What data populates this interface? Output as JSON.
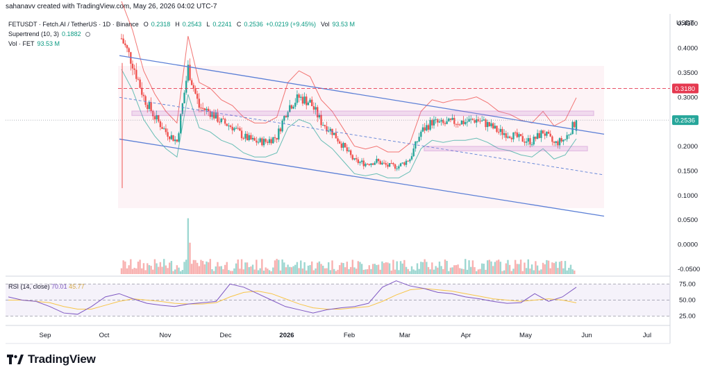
{
  "header": {
    "credit": "sahanavv created with TradingView.com, May 26, 2026 04:02 UTC-7"
  },
  "legend": {
    "symbol": "FETUSDT · Fetch.AI / TetherUS · 1D · Binance",
    "o_label": "O",
    "o_value": "0.2318",
    "h_label": "H",
    "h_value": "0.2543",
    "l_label": "L",
    "l_value": "0.2241",
    "c_label": "C",
    "c_value": "0.2536",
    "change": "+0.0219 (+9.45%)",
    "vol_label": "Vol",
    "vol_value": "93.53 M",
    "supertrend_label": "Supertrend (10, 3)",
    "supertrend_value": "0.1882",
    "vol_fet_label": "Vol · FET",
    "vol_fet_value": "93.53 M"
  },
  "rsi_legend": {
    "label": "RSI (14, close)",
    "rsi_value": "70.01",
    "ma_value": "45.77"
  },
  "brand": {
    "text": "TradingView"
  },
  "colors": {
    "up": "#26a69a",
    "down": "#ef5350",
    "channel": "#5b7fd6",
    "zone": "#9c27b0",
    "resistance": "#e53950",
    "price_tag": "#26a69a",
    "rsi_line": "#7e57c2",
    "rsi_ma": "#f7c548"
  },
  "chart_data": {
    "type": "line",
    "title": "FETUSDT · Fetch.AI / TetherUS · 1D · Binance",
    "currency": "USDT",
    "y_ticks": [
      "0.4500",
      "0.4000",
      "0.3500",
      "0.3000",
      "0.2500",
      "0.2000",
      "0.1500",
      "0.1000",
      "0.0500",
      "0.0000",
      "-0.0500"
    ],
    "ylim": [
      -0.06,
      0.47
    ],
    "x_ticks": [
      "Sep",
      "Oct",
      "Nov",
      "Dec",
      "2026",
      "Feb",
      "Mar",
      "Apr",
      "May",
      "Jun",
      "Jul"
    ],
    "last_price": "0.2536",
    "resistance_level": "0.3180",
    "price_series": {
      "name": "FETUSDT",
      "x": [
        "Oct 10",
        "Oct 12",
        "Oct 16",
        "Oct 22",
        "Oct 28",
        "Nov 3",
        "Nov 5",
        "Nov 10",
        "Nov 16",
        "Nov 22",
        "Nov 28",
        "Dec 4",
        "Dec 10",
        "Dec 16",
        "Dec 22",
        "Dec 28",
        "Jan 2",
        "Jan 8",
        "Jan 14",
        "Jan 20",
        "Jan 26",
        "Feb 1",
        "Feb 7",
        "Feb 13",
        "Feb 19",
        "Feb 25",
        "Mar 3",
        "Mar 9",
        "Mar 13",
        "Mar 18",
        "Mar 24",
        "Mar 30",
        "Apr 5",
        "Apr 11",
        "Apr 17",
        "Apr 23",
        "Apr 29",
        "May 5",
        "May 11",
        "May 17",
        "May 23",
        "May 26"
      ],
      "values": [
        0.42,
        0.37,
        0.3,
        0.26,
        0.23,
        0.21,
        0.36,
        0.28,
        0.27,
        0.25,
        0.24,
        0.22,
        0.21,
        0.21,
        0.22,
        0.28,
        0.3,
        0.29,
        0.25,
        0.23,
        0.2,
        0.17,
        0.165,
        0.17,
        0.16,
        0.16,
        0.175,
        0.23,
        0.25,
        0.245,
        0.25,
        0.25,
        0.255,
        0.245,
        0.23,
        0.225,
        0.215,
        0.21,
        0.23,
        0.205,
        0.215,
        0.2536
      ]
    },
    "rsi": {
      "name": "RSI (14, close)",
      "levels": [
        "75.00",
        "50.00",
        "25.00"
      ],
      "ylim": [
        15,
        85
      ],
      "values": [
        55,
        50,
        48,
        40,
        30,
        28,
        40,
        55,
        60,
        52,
        45,
        42,
        40,
        44,
        46,
        48,
        75,
        70,
        60,
        50,
        40,
        35,
        30,
        35,
        38,
        40,
        45,
        70,
        80,
        72,
        68,
        62,
        60,
        55,
        52,
        48,
        45,
        46,
        60,
        48,
        55,
        70.01
      ],
      "ma": [
        50,
        50,
        48,
        46,
        40,
        36,
        36,
        42,
        48,
        52,
        50,
        48,
        45,
        44,
        44,
        46,
        55,
        62,
        64,
        60,
        52,
        44,
        38,
        36,
        36,
        38,
        40,
        48,
        58,
        66,
        68,
        66,
        64,
        60,
        56,
        52,
        50,
        48,
        50,
        52,
        50,
        45.77
      ]
    }
  }
}
